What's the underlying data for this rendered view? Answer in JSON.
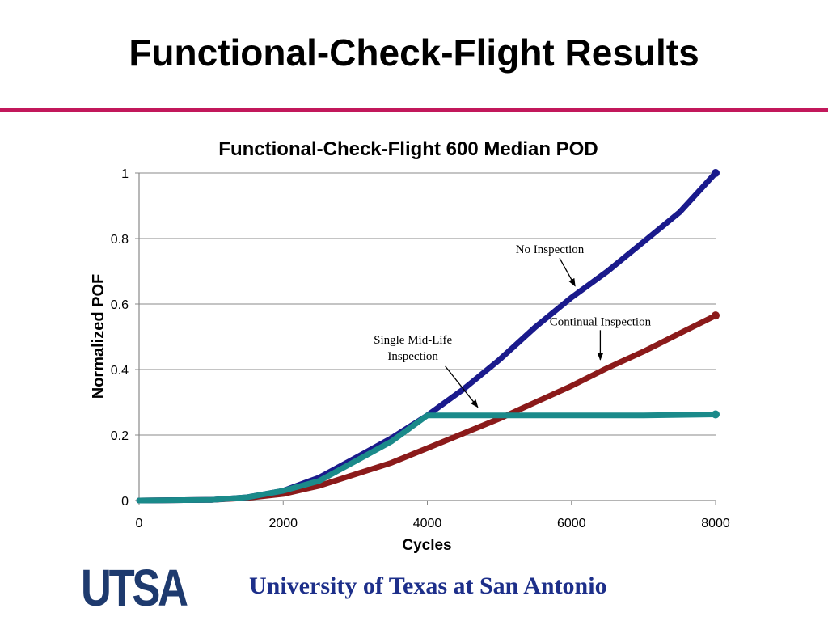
{
  "slide": {
    "title": "Functional-Check-Flight Results",
    "rule_color": "#c2185b"
  },
  "footer": {
    "logo_text": "UTSA",
    "institution": "University of Texas at San Antonio",
    "logo_color": "#1e3a6e",
    "text_color": "#1d2f8a"
  },
  "chart_data": {
    "type": "line",
    "title": "Functional-Check-Flight 600 Median POD",
    "xlabel": "Cycles",
    "ylabel": "Normalized POF",
    "xlim": [
      0,
      8000
    ],
    "ylim": [
      0,
      1
    ],
    "xticks": [
      0,
      2000,
      4000,
      6000,
      8000
    ],
    "yticks": [
      0,
      0.2,
      0.4,
      0.6,
      0.8,
      1
    ],
    "ytick_labels": [
      "0",
      "0.2",
      "0.4",
      "0.6",
      "0.8",
      "1"
    ],
    "grid": "horizontal",
    "series": [
      {
        "name": "No Inspection",
        "color": "#1a1a8c",
        "x": [
          0,
          1000,
          1500,
          2000,
          2500,
          3000,
          3500,
          4000,
          4500,
          5000,
          5500,
          6000,
          6500,
          7000,
          7500,
          8000
        ],
        "y": [
          0,
          0.002,
          0.01,
          0.03,
          0.07,
          0.13,
          0.19,
          0.26,
          0.34,
          0.43,
          0.53,
          0.62,
          0.7,
          0.79,
          0.88,
          1.0
        ]
      },
      {
        "name": "Continual Inspection",
        "color": "#8b1a1a",
        "x": [
          0,
          1000,
          1500,
          2000,
          2500,
          3000,
          3500,
          4000,
          4500,
          5000,
          5500,
          6000,
          6500,
          7000,
          7500,
          8000
        ],
        "y": [
          0,
          0.002,
          0.008,
          0.02,
          0.045,
          0.08,
          0.115,
          0.16,
          0.205,
          0.25,
          0.3,
          0.35,
          0.405,
          0.455,
          0.51,
          0.565
        ]
      },
      {
        "name": "Single Mid-Life Inspection",
        "color": "#1a8a8a",
        "x": [
          0,
          1000,
          1500,
          2000,
          2500,
          3000,
          3500,
          4000,
          5000,
          6000,
          7000,
          8000
        ],
        "y": [
          0,
          0.002,
          0.01,
          0.03,
          0.06,
          0.12,
          0.18,
          0.26,
          0.26,
          0.26,
          0.26,
          0.263
        ]
      }
    ],
    "annotations": [
      {
        "id": "no-inspection",
        "lines": [
          "No Inspection"
        ],
        "target": [
          6050,
          0.655
        ],
        "align": "center",
        "anchor": [
          5700,
          0.755
        ]
      },
      {
        "id": "continual-inspection",
        "lines": [
          "Continual Inspection"
        ],
        "target": [
          6400,
          0.43
        ],
        "align": "center",
        "anchor": [
          6400,
          0.535
        ]
      },
      {
        "id": "single-mid-life",
        "lines": [
          "Single Mid-Life",
          "Inspection"
        ],
        "target": [
          4700,
          0.285
        ],
        "align": "center",
        "anchor": [
          3800,
          0.43
        ]
      }
    ]
  }
}
